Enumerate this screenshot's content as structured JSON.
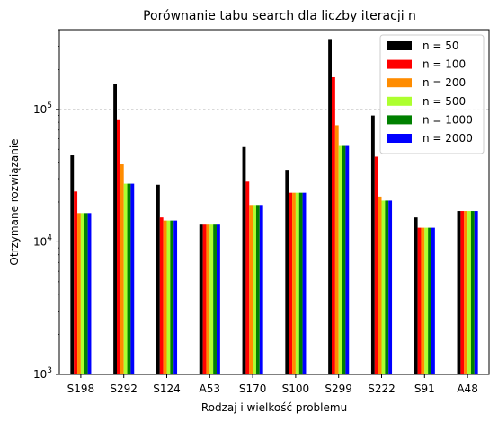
{
  "chart_data": {
    "type": "bar",
    "title": "Porównanie tabu search dla liczby iteracji n",
    "xlabel": "Rodzaj i wielkość problemu",
    "ylabel": "Otrzymane rozwiązanie",
    "yscale": "log",
    "ylim": [
      1000,
      400000
    ],
    "yticks": [
      {
        "value": 1000,
        "base": "10",
        "exp": "3"
      },
      {
        "value": 10000,
        "base": "10",
        "exp": "4"
      },
      {
        "value": 100000,
        "base": "10",
        "exp": "5"
      }
    ],
    "grid": "y-major-dashed",
    "legend_position": "top-right",
    "categories": [
      "S198",
      "S292",
      "S124",
      "A53",
      "S170",
      "S100",
      "S299",
      "S222",
      "S91",
      "A48"
    ],
    "series": [
      {
        "name": "n = 50",
        "color": "#000000",
        "values": [
          45000,
          155000,
          27000,
          13500,
          52000,
          35000,
          340000,
          90000,
          15300,
          17100
        ]
      },
      {
        "name": "n = 100",
        "color": "#ff0000",
        "values": [
          24000,
          83000,
          15300,
          13500,
          28500,
          23500,
          175000,
          44000,
          12800,
          17100
        ]
      },
      {
        "name": "n = 200",
        "color": "#ff8c00",
        "values": [
          16500,
          38500,
          14500,
          13500,
          19000,
          23500,
          76000,
          22000,
          12800,
          17100
        ]
      },
      {
        "name": "n = 500",
        "color": "#adff2f",
        "values": [
          16500,
          27500,
          14500,
          13500,
          19000,
          23500,
          53000,
          20500,
          12800,
          17100
        ]
      },
      {
        "name": "n = 1000",
        "color": "#008000",
        "values": [
          16500,
          27500,
          14500,
          13500,
          19000,
          23500,
          53000,
          20500,
          12800,
          17100
        ]
      },
      {
        "name": "n = 2000",
        "color": "#0000ff",
        "values": [
          16500,
          27500,
          14500,
          13500,
          19000,
          23500,
          53000,
          20500,
          12800,
          17100
        ]
      }
    ]
  }
}
